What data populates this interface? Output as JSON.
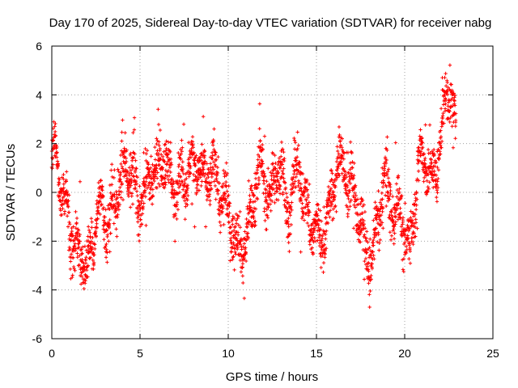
{
  "chart_data": {
    "type": "scatter",
    "title": "Day 170 of 2025, Sidereal Day-to-day VTEC variation (SDTVAR) for receiver nabg",
    "xlabel": "GPS time / hours",
    "ylabel": "SDTVAR / TECUs",
    "xlim": [
      0,
      25
    ],
    "ylim": [
      -6,
      6
    ],
    "xticks": [
      0,
      5,
      10,
      15,
      20,
      25
    ],
    "yticks": [
      -6,
      -4,
      -2,
      0,
      2,
      4,
      6
    ],
    "xtick_labels": [
      "0",
      "5",
      "10",
      "15",
      "20",
      "25"
    ],
    "ytick_labels": [
      "-6",
      "-4",
      "-2",
      "0",
      "2",
      "4",
      "6"
    ],
    "grid": true,
    "marker": "plus",
    "series_color": "#ff0000",
    "series": [
      {
        "name": "SDTVAR",
        "trend_x": [
          0.0,
          0.1,
          0.2,
          0.4,
          0.6,
          0.9,
          1.1,
          1.3,
          1.5,
          1.8,
          2.0,
          2.2,
          2.5,
          2.8,
          3.1,
          3.4,
          3.7,
          4.0,
          4.3,
          4.6,
          4.9,
          5.2,
          5.6,
          5.9,
          6.2,
          6.5,
          6.8,
          7.1,
          7.5,
          7.9,
          8.3,
          8.6,
          9.0,
          9.3,
          9.6,
          10.0,
          10.3,
          10.6,
          11.0,
          11.3,
          11.6,
          11.9,
          12.1,
          12.4,
          12.7,
          13.0,
          13.3,
          13.6,
          14.0,
          14.3,
          14.6,
          14.9,
          15.3,
          15.7,
          16.1,
          16.5,
          16.9,
          17.3,
          17.6,
          17.9,
          18.2,
          18.5,
          18.8,
          19.1,
          19.4,
          19.7,
          20.0,
          20.3,
          20.6,
          20.9,
          21.2,
          21.5,
          21.8,
          22.0,
          22.2,
          22.4,
          22.6,
          22.8,
          22.9
        ],
        "trend_y": [
          1.2,
          1.5,
          1.6,
          0.9,
          0.0,
          -1.0,
          -1.8,
          -2.2,
          -2.4,
          -2.6,
          -3.0,
          -2.5,
          -1.0,
          -0.5,
          -1.5,
          -0.8,
          0.0,
          0.8,
          1.2,
          0.5,
          -0.5,
          0.0,
          0.8,
          0.6,
          1.5,
          1.2,
          0.2,
          0.5,
          0.6,
          1.0,
          1.2,
          0.5,
          1.0,
          0.8,
          -0.2,
          -0.8,
          -1.5,
          -2.2,
          -2.0,
          -0.8,
          0.8,
          1.0,
          0.3,
          -0.3,
          0.8,
          1.0,
          -0.6,
          -0.2,
          1.2,
          -0.5,
          -1.0,
          -1.5,
          -1.8,
          -1.0,
          1.0,
          1.3,
          0.2,
          -0.3,
          -1.8,
          -2.5,
          -2.9,
          -1.0,
          0.5,
          0.0,
          -1.0,
          -0.5,
          -1.8,
          -2.4,
          0.0,
          1.5,
          1.2,
          0.5,
          1.0,
          2.0,
          3.0,
          4.4,
          4.2,
          3.0,
          2.0
        ],
        "spread": 0.9,
        "point_count": 2600
      }
    ]
  }
}
